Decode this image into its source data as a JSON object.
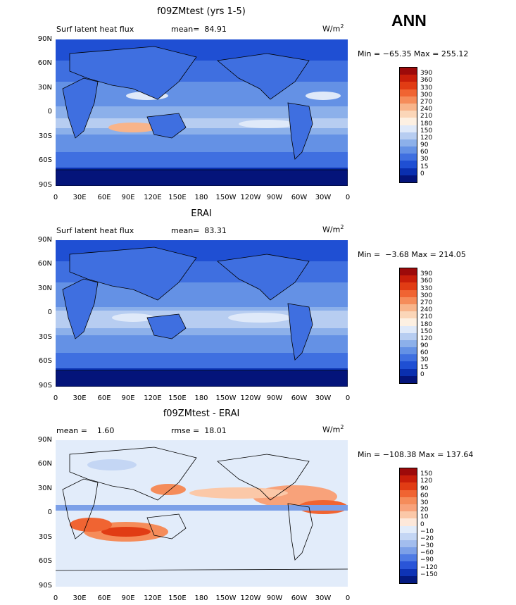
{
  "season": "ANN",
  "lat_labels": [
    "90N",
    "60N",
    "30N",
    "0",
    "30S",
    "60S",
    "90S"
  ],
  "lon_labels": [
    "0",
    "30E",
    "60E",
    "90E",
    "120E",
    "150E",
    "180",
    "150W",
    "120W",
    "90W",
    "60W",
    "30W",
    "0"
  ],
  "panels": [
    {
      "title": "f09ZMtest (yrs 1-5)",
      "left_text": "Surf latent heat flux",
      "mean_text": "mean=  84.91",
      "units_main": "W/m",
      "units_sup": "2",
      "minmax": "Min = −65.35 Max = 255.12",
      "colorbar_labels": [
        "390",
        "360",
        "330",
        "300",
        "270",
        "240",
        "210",
        "180",
        "150",
        "120",
        "90",
        "60",
        "30",
        "15",
        "0"
      ],
      "colorbar_colors": [
        "#9d0a0a",
        "#c81e0a",
        "#e13c14",
        "#f06432",
        "#f58c5a",
        "#f8b48a",
        "#fbd6b8",
        "#fdf0e2",
        "#dfe9f9",
        "#b7cdf1",
        "#8cb0ea",
        "#6491e5",
        "#3f6fe0",
        "#1f4fd3",
        "#0a2faf",
        "#04147a"
      ]
    },
    {
      "title": "ERAI",
      "left_text": "Surf latent heat flux",
      "mean_text": "mean=  83.31",
      "units_main": "W/m",
      "units_sup": "2",
      "minmax": "Min =  −3.68 Max = 214.05",
      "colorbar_labels": [
        "390",
        "360",
        "330",
        "300",
        "270",
        "240",
        "210",
        "180",
        "150",
        "120",
        "90",
        "60",
        "30",
        "15",
        "0"
      ],
      "colorbar_colors": [
        "#9d0a0a",
        "#c81e0a",
        "#e13c14",
        "#f06432",
        "#f58c5a",
        "#f8b48a",
        "#fbd6b8",
        "#fdf0e2",
        "#dfe9f9",
        "#b7cdf1",
        "#8cb0ea",
        "#6491e5",
        "#3f6fe0",
        "#1f4fd3",
        "#0a2faf",
        "#04147a"
      ]
    },
    {
      "title": "f09ZMtest - ERAI",
      "left_text": "mean =    1.60",
      "mean_text": "rmse =  18.01",
      "units_main": "W/m",
      "units_sup": "2",
      "minmax": "Min = −108.38 Max = 137.64",
      "colorbar_labels": [
        "150",
        "120",
        "90",
        "60",
        "30",
        "20",
        "10",
        "0",
        "−10",
        "−20",
        "−30",
        "−60",
        "−90",
        "−120",
        "−150"
      ],
      "colorbar_colors": [
        "#9d0a0a",
        "#c81e0a",
        "#e13c14",
        "#f06432",
        "#f58c5a",
        "#f8a27a",
        "#fbc8a8",
        "#fde8da",
        "#e2ecfa",
        "#c4d6f4",
        "#a2bdee",
        "#7ca0e8",
        "#4f7be4",
        "#2a55d8",
        "#0e33b5",
        "#041a80"
      ]
    }
  ]
}
